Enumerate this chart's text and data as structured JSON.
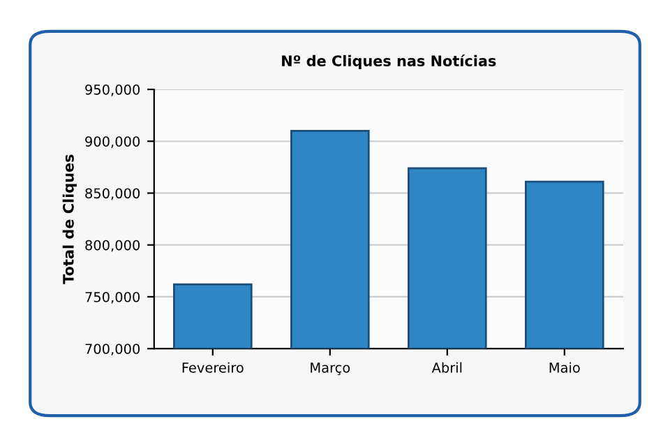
{
  "chart_data": {
    "type": "bar",
    "title": "Nº de Cliques nas Notícias",
    "ylabel": "Total de Cliques",
    "categories": [
      "Fevereiro",
      "Março",
      "Abril",
      "Maio"
    ],
    "values": [
      762000,
      910000,
      874000,
      861000
    ],
    "color": "#2f86c6",
    "ylim": [
      700000,
      950000
    ],
    "yticks": [
      {
        "value": 700000,
        "label": "700,000"
      },
      {
        "value": 750000,
        "label": "750,000"
      },
      {
        "value": 800000,
        "label": "800,000"
      },
      {
        "value": 850000,
        "label": "850,000"
      },
      {
        "value": 900000,
        "label": "900,000"
      },
      {
        "value": 950000,
        "label": "950,000"
      }
    ],
    "grid": "y",
    "legend": false
  }
}
